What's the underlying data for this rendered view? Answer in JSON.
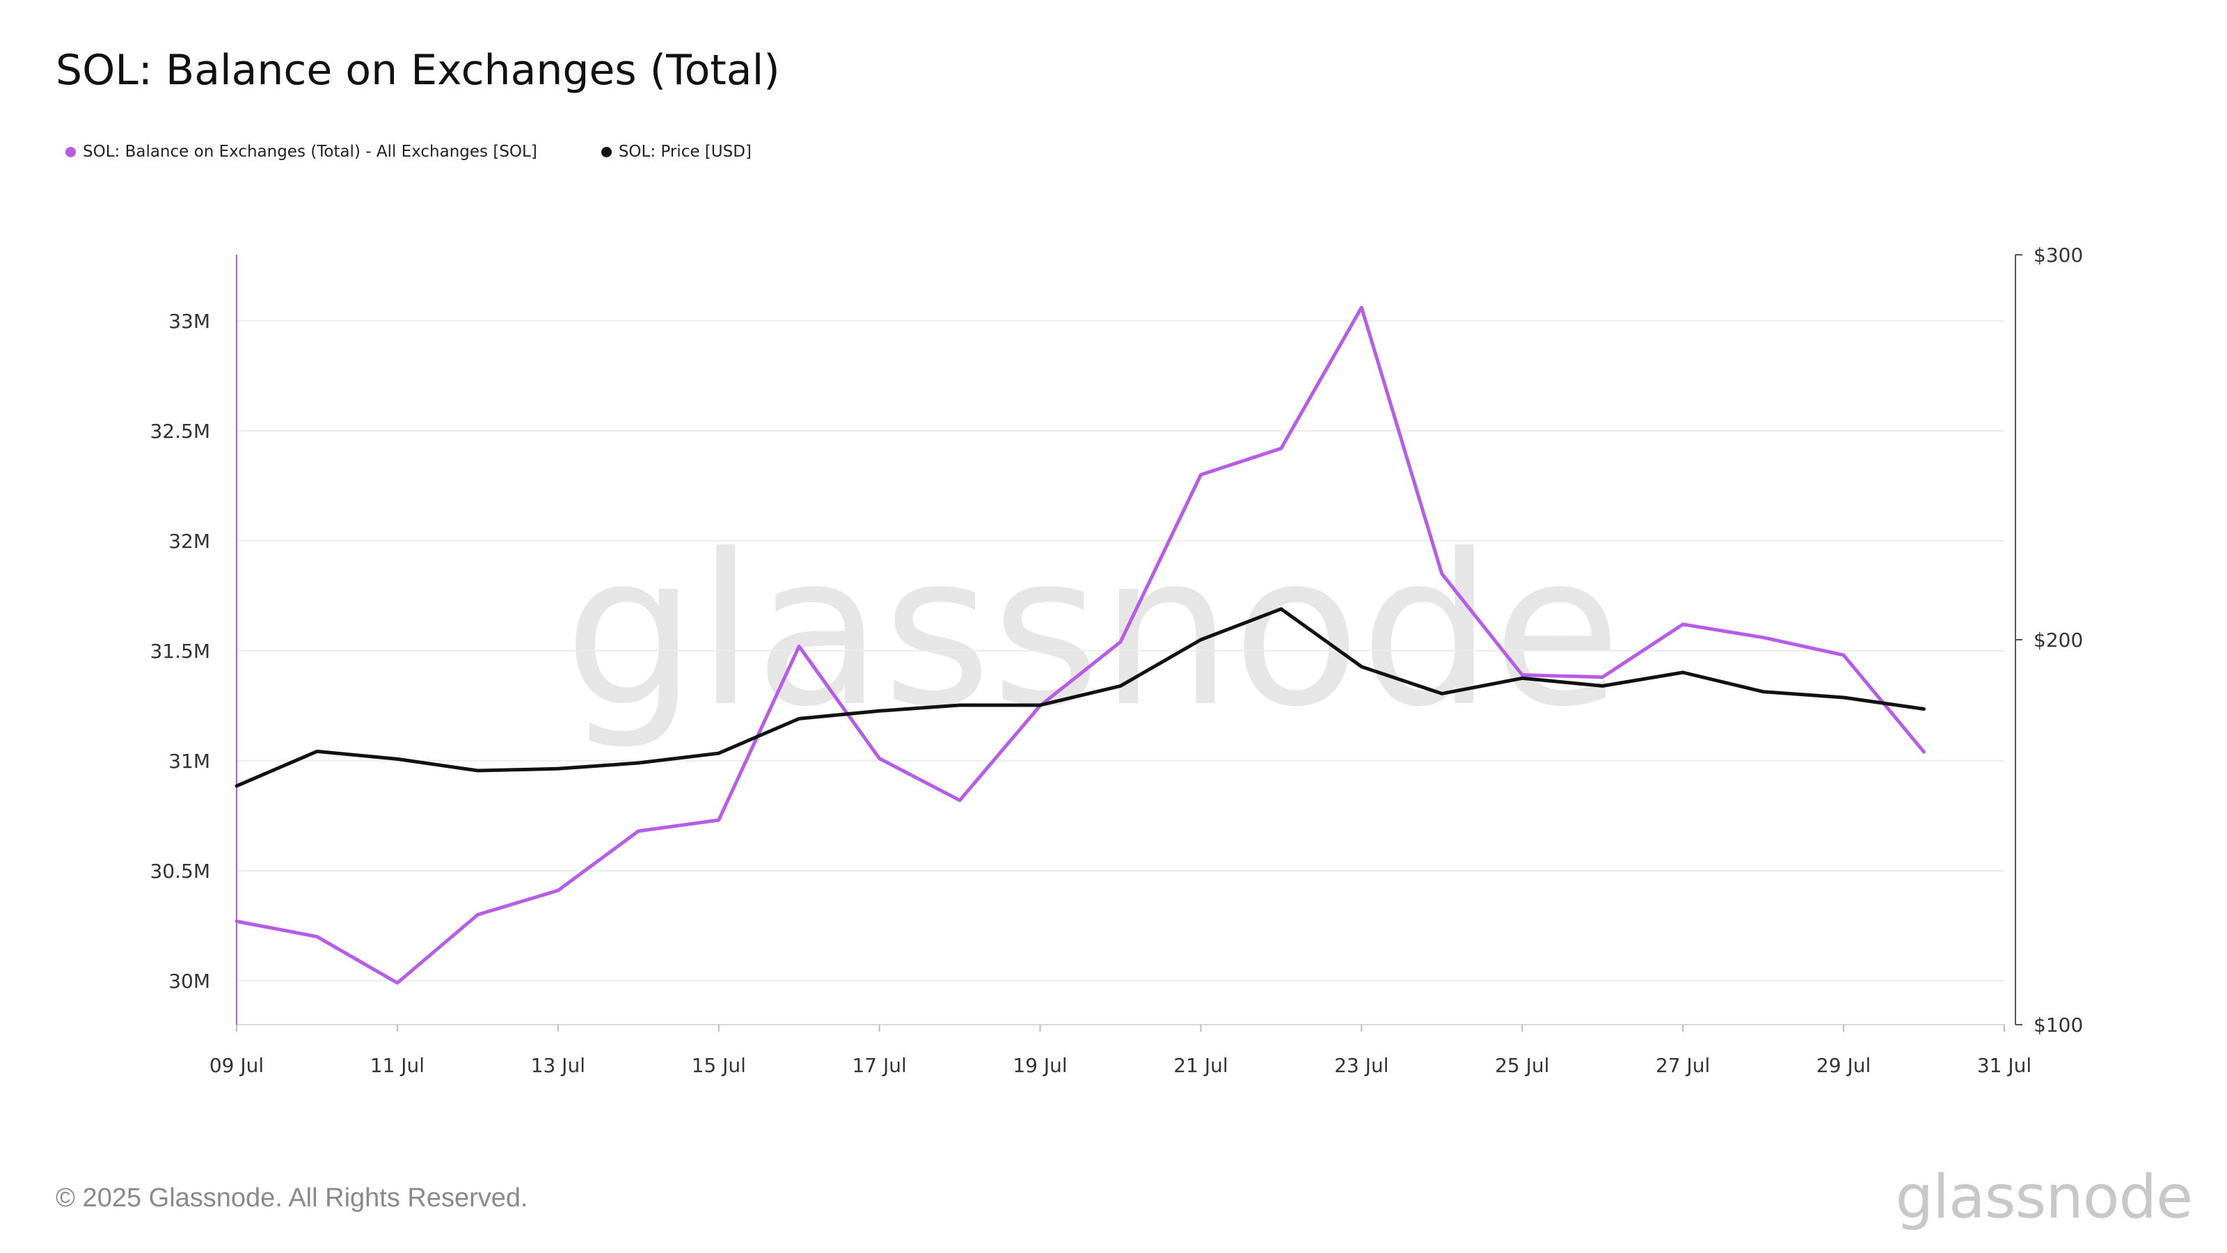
{
  "title": "SOL: Balance on Exchanges (Total)",
  "footer": "© 2025 Glassnode. All Rights Reserved.",
  "brand": "glassnode",
  "watermark": "glassnode",
  "chart_data": {
    "type": "line",
    "title": "SOL: Balance on Exchanges (Total)",
    "legend_position": "top-left",
    "grid": true,
    "x": [
      "09 Jul",
      "10 Jul",
      "11 Jul",
      "12 Jul",
      "13 Jul",
      "14 Jul",
      "15 Jul",
      "16 Jul",
      "17 Jul",
      "18 Jul",
      "19 Jul",
      "20 Jul",
      "21 Jul",
      "22 Jul",
      "23 Jul",
      "24 Jul",
      "25 Jul",
      "26 Jul",
      "27 Jul",
      "28 Jul",
      "29 Jul",
      "30 Jul"
    ],
    "x_range": [
      "09 Jul",
      "31 Jul"
    ],
    "x_tick_labels": [
      "09 Jul",
      "11 Jul",
      "13 Jul",
      "15 Jul",
      "17 Jul",
      "19 Jul",
      "21 Jul",
      "23 Jul",
      "25 Jul",
      "27 Jul",
      "29 Jul",
      "31 Jul"
    ],
    "y_left": {
      "range": [
        29.8,
        33.3
      ],
      "unit": "M",
      "ticks": [
        30,
        30.5,
        31,
        31.5,
        32,
        32.5,
        33
      ],
      "tick_labels": [
        "30M",
        "30.5M",
        "31M",
        "31.5M",
        "32M",
        "32.5M",
        "33M"
      ]
    },
    "y_right": {
      "range": [
        100,
        300
      ],
      "ticks": [
        100,
        200,
        300
      ],
      "tick_labels": [
        "$100",
        "$200",
        "$300"
      ]
    },
    "series": [
      {
        "name": "SOL: Balance on Exchanges (Total) - All Exchanges [SOL]",
        "axis": "left",
        "color": "#b65ce8",
        "values": [
          30.27,
          30.2,
          29.99,
          30.3,
          30.41,
          30.68,
          30.73,
          31.52,
          31.01,
          30.82,
          31.25,
          31.54,
          32.3,
          32.42,
          33.06,
          31.85,
          31.39,
          31.38,
          31.62,
          31.56,
          31.48,
          31.04
        ]
      },
      {
        "name": "SOL: Price [USD]",
        "axis": "right",
        "color": "#111111",
        "values": [
          162,
          171,
          169,
          166,
          166.5,
          168,
          170.5,
          179.5,
          181.5,
          183,
          183,
          188,
          200,
          208,
          193,
          186,
          190,
          188,
          191.5,
          186.5,
          185,
          182
        ]
      }
    ]
  }
}
